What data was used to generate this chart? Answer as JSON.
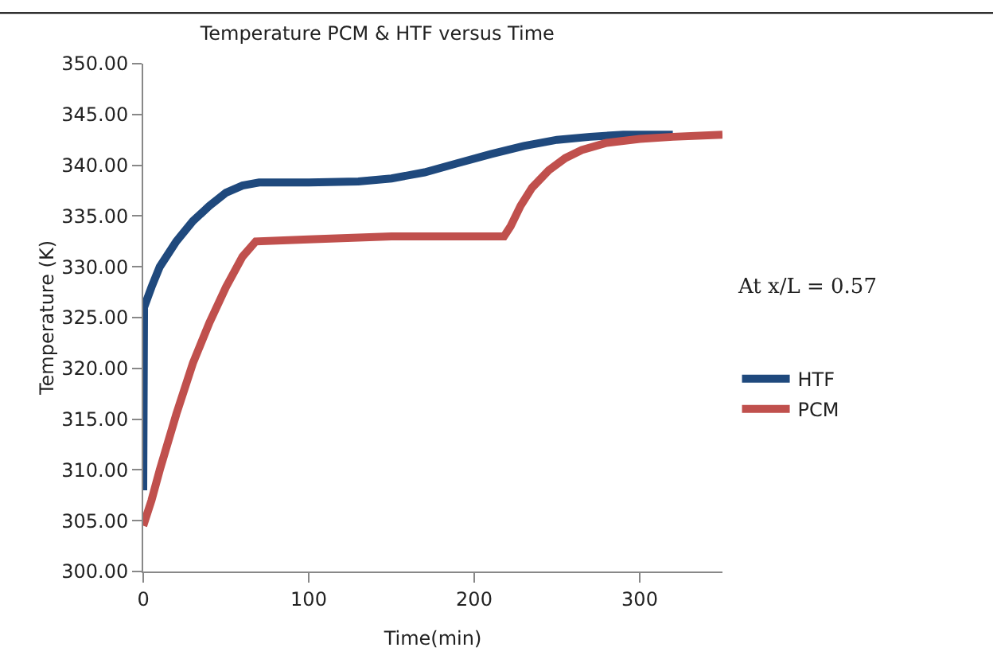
{
  "chart_data": {
    "type": "line",
    "title": "Temperature PCM & HTF versus Time",
    "xlabel": "Time(min)",
    "ylabel": "Temperature (K)",
    "xlim": [
      0,
      350
    ],
    "xticks": [
      0,
      100,
      200,
      300
    ],
    "ylim": [
      300,
      350
    ],
    "yticks": [
      {
        "value": 300,
        "label": "300.00"
      },
      {
        "value": 305,
        "label": "305.00"
      },
      {
        "value": 310,
        "label": "310.00"
      },
      {
        "value": 315,
        "label": "315.00"
      },
      {
        "value": 320,
        "label": "320.00"
      },
      {
        "value": 325,
        "label": "325.00"
      },
      {
        "value": 330,
        "label": "330.00"
      },
      {
        "value": 335,
        "label": "335.00"
      },
      {
        "value": 340,
        "label": "340.00"
      },
      {
        "value": 345,
        "label": "345.00"
      },
      {
        "value": 350,
        "label": "350.00"
      }
    ],
    "grid": false,
    "legend": "right",
    "marker": "none",
    "line_style": "solid",
    "annotations": [
      "At x/L = 0.57"
    ],
    "series": [
      {
        "name": "HTF",
        "color": "#1f497d",
        "x": [
          0,
          0.5,
          5,
          10,
          20,
          30,
          40,
          50,
          60,
          70,
          100,
          130,
          150,
          170,
          190,
          210,
          230,
          250,
          270,
          290,
          300,
          320
        ],
        "values": [
          308,
          326,
          328,
          330,
          332.5,
          334.5,
          336,
          337.3,
          338,
          338.3,
          338.3,
          338.4,
          338.7,
          339.3,
          340.2,
          341.1,
          341.9,
          342.5,
          342.8,
          343,
          343,
          343
        ]
      },
      {
        "name": "PCM",
        "color": "#c0504d",
        "x": [
          0,
          5,
          10,
          20,
          30,
          40,
          50,
          60,
          68,
          100,
          150,
          200,
          218,
          222,
          228,
          235,
          245,
          255,
          265,
          280,
          300,
          320,
          350
        ],
        "values": [
          304.5,
          307,
          310,
          315.5,
          320.5,
          324.5,
          328,
          331,
          332.5,
          332.7,
          333,
          333,
          333,
          334,
          336,
          337.8,
          339.5,
          340.7,
          341.5,
          342.2,
          342.6,
          342.8,
          343
        ]
      }
    ]
  }
}
